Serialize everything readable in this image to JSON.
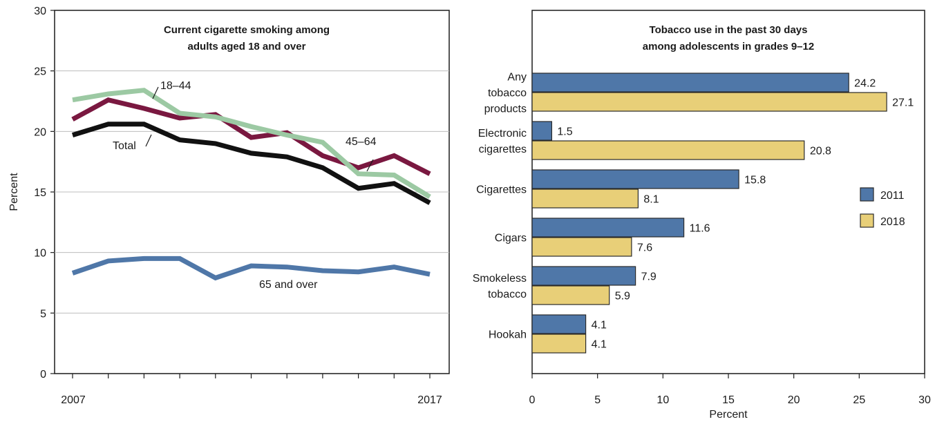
{
  "chart_data": [
    {
      "type": "line",
      "title_lines": [
        "Current cigarette smoking among",
        "adults aged 18 and over"
      ],
      "ylabel": "Percent",
      "ylim": [
        0,
        30
      ],
      "yticks": [
        "0",
        "5",
        "10",
        "15",
        "20",
        "25",
        "30"
      ],
      "x": [
        2007,
        2008,
        2009,
        2010,
        2011,
        2012,
        2013,
        2014,
        2015,
        2016,
        2017
      ],
      "xtick_labels": [
        "2007",
        "2017"
      ],
      "grid": true,
      "series": [
        {
          "name": "65 and over",
          "color": "#4f77a8",
          "values": [
            8.3,
            9.3,
            9.5,
            9.5,
            7.9,
            8.9,
            8.8,
            8.5,
            8.4,
            8.8,
            8.2
          ]
        },
        {
          "name": "Total",
          "color": "#111111",
          "values": [
            19.7,
            20.6,
            20.6,
            19.3,
            19.0,
            18.2,
            17.9,
            17.0,
            15.3,
            15.7,
            14.1
          ]
        },
        {
          "name": "45–64",
          "color": "#7a1840",
          "values": [
            21.0,
            22.6,
            21.9,
            21.1,
            21.4,
            19.5,
            19.9,
            18.0,
            17.0,
            18.0,
            16.5
          ]
        },
        {
          "name": "18–44",
          "color": "#9cc9a3",
          "values": [
            22.6,
            23.1,
            23.4,
            21.5,
            21.2,
            20.4,
            19.7,
            19.1,
            16.5,
            16.4,
            14.6
          ]
        }
      ]
    },
    {
      "type": "bar",
      "orientation": "horizontal",
      "title_lines": [
        "Tobacco use in the past 30 days",
        "among adolescents in grades 9–12"
      ],
      "xlabel": "Percent",
      "xlim": [
        0,
        30
      ],
      "xticks": [
        "0",
        "5",
        "10",
        "15",
        "20",
        "25",
        "30"
      ],
      "categories": [
        [
          "Any",
          "tobacco",
          "products"
        ],
        [
          "Electronic",
          "cigarettes"
        ],
        [
          "Cigarettes"
        ],
        [
          "Cigars"
        ],
        [
          "Smokeless",
          "tobacco"
        ],
        [
          "Hookah"
        ]
      ],
      "series": [
        {
          "name": "2011",
          "color": "#4f77a8",
          "values": [
            24.2,
            1.5,
            15.8,
            11.6,
            7.9,
            4.1
          ],
          "value_labels": [
            "24.2",
            "1.5",
            "15.8",
            "11.6",
            "7.9",
            "4.1"
          ]
        },
        {
          "name": "2018",
          "color": "#e8cf78",
          "values": [
            27.1,
            20.8,
            8.1,
            7.6,
            5.9,
            4.1
          ],
          "value_labels": [
            "27.1",
            "20.8",
            "8.1",
            "7.6",
            "5.9",
            "4.1"
          ]
        }
      ],
      "legend_placement": "right"
    }
  ]
}
